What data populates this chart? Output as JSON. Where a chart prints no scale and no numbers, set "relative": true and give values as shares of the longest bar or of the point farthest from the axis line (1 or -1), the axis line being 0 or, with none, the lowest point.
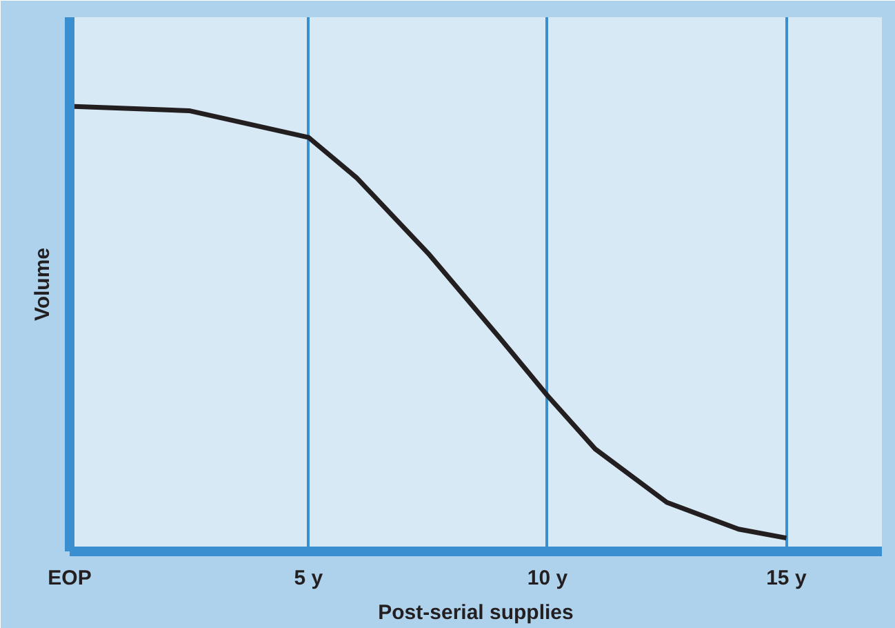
{
  "chart_data": {
    "type": "line",
    "relative": true,
    "xlabel": "Post-serial supplies",
    "ylabel": "Volume",
    "x": [
      0,
      2.5,
      5,
      6,
      7.5,
      9,
      10,
      11,
      12.5,
      14,
      15
    ],
    "series": [
      {
        "color": "#231f20",
        "values": [
          1.0,
          0.99,
          0.93,
          0.84,
          0.67,
          0.48,
          0.35,
          0.23,
          0.11,
          0.05,
          0.03
        ]
      }
    ],
    "xlim": [
      0,
      17
    ],
    "xticks": [
      {
        "value": 0,
        "label": "EOP"
      },
      {
        "value": 5,
        "label": "5 y"
      },
      {
        "value": 10,
        "label": "10 y"
      },
      {
        "value": 15,
        "label": "15 y"
      }
    ],
    "grid": "x",
    "marker": "none",
    "line_style": "solid"
  }
}
